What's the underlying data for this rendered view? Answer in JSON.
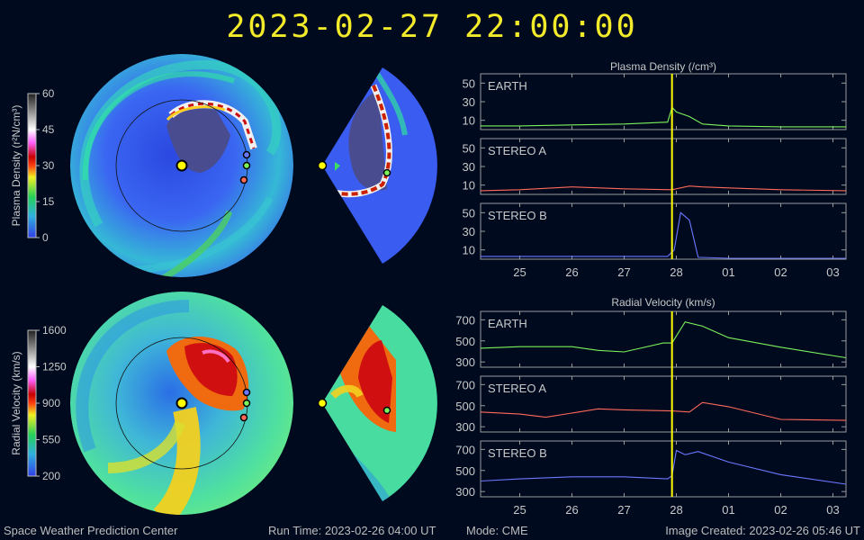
{
  "timestamp": "2023-02-27  22:00:00",
  "footer": {
    "center_name": "Space Weather Prediction Center",
    "run_time": "Run Time: 2023-02-26 04:00 UT",
    "mode": "Mode: CME",
    "image_created": "Image Created: 2023-02-26 05:46 UT"
  },
  "colors": {
    "background": "#000a1f",
    "title": "#f3ea2a",
    "earth": "#7cf25a",
    "stereo_a": "#ff6a5a",
    "stereo_b": "#6a78ff",
    "marker": "#ffff00",
    "disk_density_base": "#3a5af0",
    "disk_velocity_base": "#44d8a0"
  },
  "colorbars": [
    {
      "label": "Plasma Density (r²N/cm³)",
      "ticks": [
        "60",
        "45",
        "30",
        "15",
        "0"
      ],
      "min": 0,
      "max": 60
    },
    {
      "label": "Radial Velocity (km/s)",
      "ticks": [
        "1600",
        "1250",
        "900",
        "550",
        "200"
      ],
      "min": 200,
      "max": 1600
    }
  ],
  "chart_data": [
    {
      "type": "line",
      "title": "Plasma Density (/cm³)",
      "x_ticks": [
        "25",
        "26",
        "27",
        "28",
        "01",
        "02",
        "03"
      ],
      "x_range": [
        "2023-02-24T06:00",
        "2023-03-03T06:00"
      ],
      "current_time": "2023-02-27T22:00",
      "panels": [
        {
          "name": "EARTH",
          "ylim": [
            0,
            60
          ],
          "y_ticks": [
            10,
            30,
            50
          ],
          "color": "#7cf25a",
          "x": [
            "2023-02-24T06",
            "2023-02-25T00",
            "2023-02-26T00",
            "2023-02-27T00",
            "2023-02-27T20",
            "2023-02-27T22",
            "2023-02-28T00",
            "2023-02-28T06",
            "2023-02-28T12",
            "2023-03-01T00",
            "2023-03-02T00",
            "2023-03-03T06"
          ],
          "y": [
            4,
            4,
            5,
            6,
            8,
            24,
            19,
            14,
            6,
            4,
            3,
            3
          ]
        },
        {
          "name": "STEREO A",
          "ylim": [
            0,
            60
          ],
          "y_ticks": [
            10,
            30,
            50
          ],
          "color": "#ff6a5a",
          "x": [
            "2023-02-24T06",
            "2023-02-25T00",
            "2023-02-26T00",
            "2023-02-27T00",
            "2023-02-27T22",
            "2023-02-28T06",
            "2023-02-28T12",
            "2023-03-01T00",
            "2023-03-02T00",
            "2023-03-03T06"
          ],
          "y": [
            4,
            5,
            8,
            6,
            5,
            9,
            8,
            7,
            5,
            4
          ]
        },
        {
          "name": "STEREO B",
          "ylim": [
            0,
            60
          ],
          "y_ticks": [
            10,
            30,
            50
          ],
          "color": "#6a78ff",
          "x": [
            "2023-02-24T06",
            "2023-02-25T00",
            "2023-02-26T00",
            "2023-02-27T00",
            "2023-02-27T20",
            "2023-02-27T23",
            "2023-02-28T02",
            "2023-02-28T06",
            "2023-02-28T10",
            "2023-03-01T00",
            "2023-03-02T00",
            "2023-03-03T06"
          ],
          "y": [
            3,
            3,
            3,
            3,
            3,
            10,
            50,
            42,
            2,
            1,
            1,
            1
          ]
        }
      ]
    },
    {
      "type": "line",
      "title": "Radial Velocity (km/s)",
      "x_ticks": [
        "25",
        "26",
        "27",
        "28",
        "01",
        "02",
        "03"
      ],
      "x_range": [
        "2023-02-24T06:00",
        "2023-03-03T06:00"
      ],
      "current_time": "2023-02-27T22:00",
      "panels": [
        {
          "name": "EARTH",
          "ylim": [
            250,
            780
          ],
          "y_ticks": [
            300,
            500,
            700
          ],
          "color": "#7cf25a",
          "x": [
            "2023-02-24T06",
            "2023-02-25T00",
            "2023-02-26T00",
            "2023-02-26T12",
            "2023-02-27T00",
            "2023-02-27T18",
            "2023-02-27T22",
            "2023-02-28T04",
            "2023-02-28T12",
            "2023-03-01T00",
            "2023-03-02T00",
            "2023-03-03T06"
          ],
          "y": [
            430,
            445,
            445,
            410,
            395,
            480,
            480,
            680,
            640,
            530,
            440,
            340
          ]
        },
        {
          "name": "STEREO A",
          "ylim": [
            250,
            780
          ],
          "y_ticks": [
            300,
            500,
            700
          ],
          "color": "#ff6a5a",
          "x": [
            "2023-02-24T06",
            "2023-02-25T00",
            "2023-02-25T12",
            "2023-02-26T12",
            "2023-02-27T00",
            "2023-02-27T22",
            "2023-02-28T06",
            "2023-02-28T12",
            "2023-03-01T00",
            "2023-03-02T00",
            "2023-03-03T06"
          ],
          "y": [
            440,
            420,
            390,
            470,
            460,
            450,
            440,
            530,
            490,
            370,
            360
          ]
        },
        {
          "name": "STEREO B",
          "ylim": [
            250,
            780
          ],
          "y_ticks": [
            300,
            500,
            700
          ],
          "color": "#6a78ff",
          "x": [
            "2023-02-24T06",
            "2023-02-25T00",
            "2023-02-26T00",
            "2023-02-27T00",
            "2023-02-27T20",
            "2023-02-27T22",
            "2023-02-28T00",
            "2023-02-28T04",
            "2023-02-28T10",
            "2023-03-01T00",
            "2023-03-02T00",
            "2023-03-03T06"
          ],
          "y": [
            400,
            420,
            440,
            440,
            420,
            450,
            690,
            650,
            680,
            580,
            460,
            370
          ]
        }
      ]
    }
  ]
}
